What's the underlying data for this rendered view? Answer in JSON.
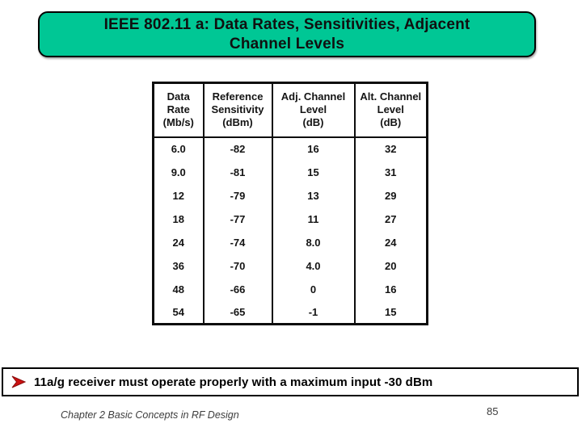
{
  "title": {
    "text": "IEEE 802.11 a: Data Rates, Sensitivities, Adjacent Channel Levels",
    "line1": "IEEE 802.11 a: Data Rates, Sensitivities, Adjacent",
    "line2": "Channel Levels"
  },
  "table": {
    "headers": [
      "Data\nRate\n(Mb/s)",
      "Reference\nSensitivity\n(dBm)",
      "Adj. Channel\nLevel\n(dB)",
      "Alt. Channel\nLevel\n(dB)"
    ],
    "rows": [
      [
        "6.0",
        "-82",
        "16",
        "32"
      ],
      [
        "9.0",
        "-81",
        "15",
        "31"
      ],
      [
        "12",
        "-79",
        "13",
        "29"
      ],
      [
        "18",
        "-77",
        "11",
        "27"
      ],
      [
        "24",
        "-74",
        "8.0",
        "24"
      ],
      [
        "36",
        "-70",
        "4.0",
        "20"
      ],
      [
        "48",
        "-66",
        "0",
        "16"
      ],
      [
        "54",
        "-65",
        "-1",
        "15"
      ]
    ]
  },
  "bullet": {
    "icon": "arrow-right-bullet",
    "text": "11a/g receiver must operate properly with a maximum input -30 dBm"
  },
  "footer": {
    "left": "Chapter 2 Basic Concepts in RF Design",
    "page": "85"
  },
  "colors": {
    "title_fill": "#00c795",
    "arrow_color": "#cc1111",
    "arrow_stroke": "#8a0d0d"
  }
}
